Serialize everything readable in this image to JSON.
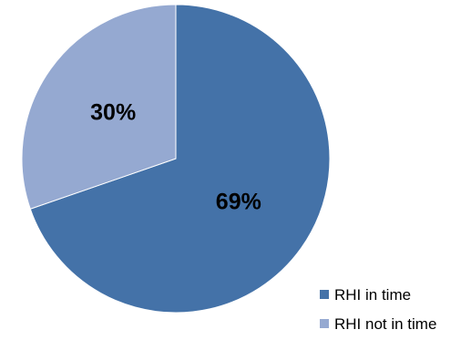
{
  "chart_data": {
    "type": "pie",
    "title": "",
    "slices": [
      {
        "name": "RHI in time",
        "value": 69,
        "label": "69%",
        "color": "#4472A8"
      },
      {
        "name": "RHI not in time",
        "value": 30,
        "label": "30%",
        "color": "#95A9D1"
      }
    ],
    "legend": {
      "placement": "bottom-right",
      "items": [
        "RHI in time",
        "RHI not in time"
      ]
    }
  }
}
